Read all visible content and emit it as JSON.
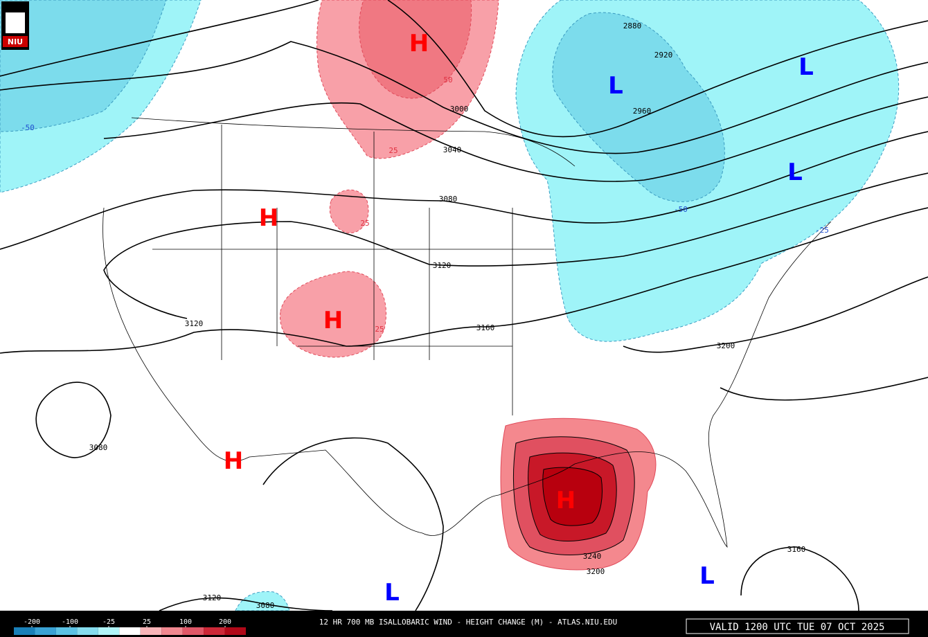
{
  "logo": "NIU",
  "title": "12 HR 700 MB ISALLOBARIC WIND - HEIGHT CHANGE (M) - ATLAS.NIU.EDU",
  "valid": "VALID 1200 UTC TUE 07 OCT 2025",
  "high_color": "#ff0000",
  "low_color": "#0000ff",
  "centers": [
    "H",
    "H",
    "H",
    "H",
    "H",
    "L",
    "L",
    "L",
    "L",
    "L"
  ],
  "height_labels": [
    "2880",
    "2920",
    "2960",
    "3000",
    "3040",
    "3080",
    "3120",
    "3120",
    "3160",
    "3200",
    "3080",
    "3120",
    "3080",
    "3200",
    "3240",
    "3160"
  ],
  "change_labels": [
    "50",
    "25",
    "25",
    "25",
    "-50",
    "-50",
    "-25"
  ],
  "colorbar": {
    "ticks": [
      -200,
      -100,
      -25,
      25,
      100,
      200
    ],
    "colors": [
      "#1a80b8",
      "#3aa2d4",
      "#5cc2e4",
      "#86dcee",
      "#b0f4f8",
      "#ffffff",
      "#f8b4b8",
      "#f08890",
      "#e05868",
      "#cc2838",
      "#b00818"
    ]
  }
}
